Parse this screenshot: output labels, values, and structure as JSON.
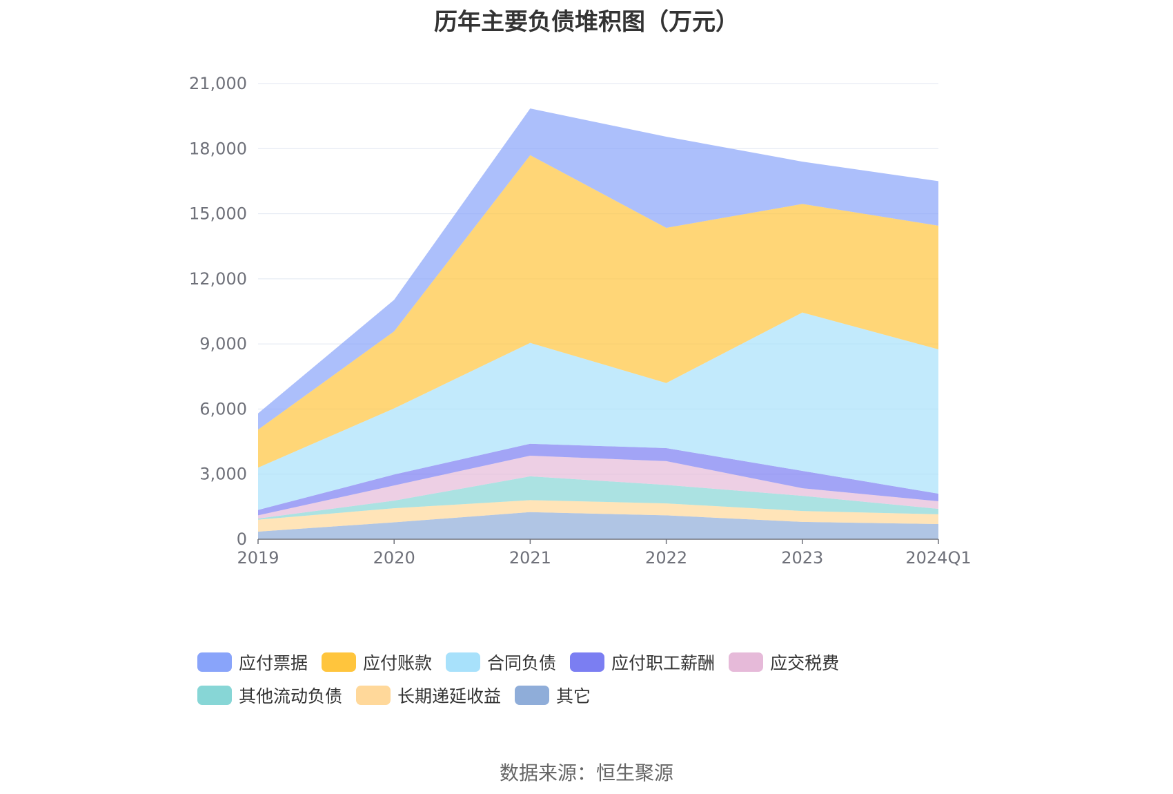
{
  "chart_data": {
    "type": "area",
    "stacked": true,
    "title": "历年主要负债堆积图（万元）",
    "xlabel": "",
    "ylabel": "",
    "x": [
      "2019",
      "2020",
      "2021",
      "2022",
      "2023",
      "2024Q1"
    ],
    "ylim": [
      0,
      21000
    ],
    "yticks": [
      0,
      3000,
      6000,
      9000,
      12000,
      15000,
      18000,
      21000
    ],
    "ytick_labels": [
      "0",
      "3,000",
      "6,000",
      "9,000",
      "12,000",
      "15,000",
      "18,000",
      "21,000"
    ],
    "grid": true,
    "legend_position": "bottom",
    "series": [
      {
        "name": "其它",
        "color": "#8fadd9",
        "values": [
          350,
          780,
          1250,
          1100,
          800,
          700
        ]
      },
      {
        "name": "长期递延收益",
        "color": "#ffd89a",
        "values": [
          550,
          650,
          550,
          550,
          500,
          450
        ]
      },
      {
        "name": "其他流动负债",
        "color": "#87d6d6",
        "values": [
          50,
          350,
          1100,
          850,
          700,
          250
        ]
      },
      {
        "name": "应交税费",
        "color": "#e6bad9",
        "values": [
          150,
          700,
          950,
          1100,
          350,
          350
        ]
      },
      {
        "name": "应付职工薪酬",
        "color": "#7b7ef2",
        "values": [
          250,
          500,
          550,
          600,
          800,
          350
        ]
      },
      {
        "name": "合同负债",
        "color": "#a8e1fb",
        "values": [
          1950,
          3050,
          4650,
          3000,
          7300,
          6650
        ]
      },
      {
        "name": "应付账款",
        "color": "#ffc53d",
        "values": [
          1750,
          3550,
          8650,
          7150,
          5000,
          5700
        ]
      },
      {
        "name": "应付票据",
        "color": "#89a4fa",
        "values": [
          750,
          1450,
          2150,
          4200,
          1950,
          2050
        ]
      }
    ]
  },
  "legend": [
    {
      "label": "应付票据",
      "color": "#89a4fa"
    },
    {
      "label": "应付账款",
      "color": "#ffc53d"
    },
    {
      "label": "合同负债",
      "color": "#a8e1fb"
    },
    {
      "label": "应付职工薪酬",
      "color": "#7b7ef2"
    },
    {
      "label": "应交税费",
      "color": "#e6bad9"
    },
    {
      "label": "其他流动负债",
      "color": "#87d6d6"
    },
    {
      "label": "长期递延收益",
      "color": "#ffd89a"
    },
    {
      "label": "其它",
      "color": "#8fadd9"
    }
  ],
  "source_text": "数据来源：恒生聚源"
}
